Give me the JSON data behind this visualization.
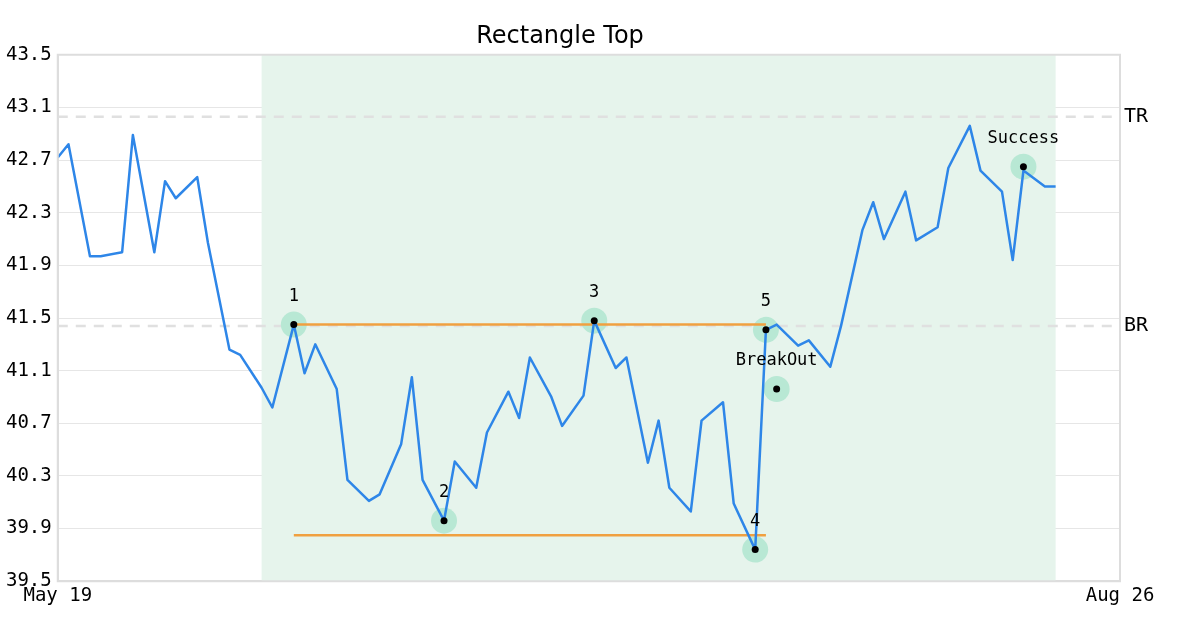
{
  "chart_data": {
    "type": "line",
    "title": "Rectangle Top",
    "x": [
      "--05-19",
      "--05-20",
      "--05-22",
      "--05-23",
      "--05-25",
      "--05-26",
      "--05-28",
      "--05-29",
      "--05-30",
      "--06-01",
      "--06-02",
      "--06-04",
      "--06-05",
      "--06-07",
      "--06-08",
      "--06-10",
      "--06-11",
      "--06-12",
      "--06-14",
      "--06-15",
      "--06-17",
      "--06-18",
      "--06-20",
      "--06-21",
      "--06-22",
      "--06-24",
      "--06-25",
      "--06-27",
      "--06-28",
      "--06-30",
      "--07-01",
      "--07-02",
      "--07-04",
      "--07-05",
      "--07-07",
      "--07-08",
      "--07-10",
      "--07-11",
      "--07-13",
      "--07-14",
      "--07-15",
      "--07-17",
      "--07-18",
      "--07-20",
      "--07-21",
      "--07-23",
      "--07-24",
      "--07-25",
      "--07-27",
      "--07-28",
      "--07-30",
      "--07-31",
      "--08-02",
      "--08-03",
      "--08-04",
      "--08-06",
      "--08-07",
      "--08-09",
      "--08-10",
      "--08-12",
      "--08-13",
      "--08-15",
      "--08-16",
      "--08-17",
      "--08-19",
      "--08-20"
    ],
    "xlim": [
      "--05-19",
      "--08-26"
    ],
    "xticks": [
      {
        "value": "--05-19",
        "label": "May 19"
      },
      {
        "value": "--08-26",
        "label": "Aug 26"
      }
    ],
    "ylim": [
      39.5,
      43.5
    ],
    "yticks": [
      39.5,
      39.9,
      40.3,
      40.7,
      41.1,
      41.5,
      41.9,
      42.3,
      42.7,
      43.1,
      43.5
    ],
    "grid": "y",
    "legend": false,
    "marker": "none",
    "series": [
      {
        "color": "#2e86e8",
        "values": [
          42.72,
          42.82,
          41.97,
          41.97,
          42.0,
          42.89,
          42.0,
          42.54,
          42.41,
          42.57,
          42.07,
          41.26,
          41.22,
          40.97,
          40.82,
          41.45,
          41.08,
          41.3,
          40.96,
          40.27,
          40.11,
          40.16,
          40.54,
          41.05,
          40.27,
          39.96,
          40.41,
          40.21,
          40.63,
          40.94,
          40.74,
          41.2,
          40.9,
          40.68,
          40.91,
          41.48,
          41.12,
          41.2,
          40.4,
          40.72,
          40.21,
          40.03,
          40.72,
          40.86,
          40.09,
          39.74,
          41.41,
          41.45,
          41.29,
          41.33,
          41.13,
          41.44,
          42.17,
          42.38,
          42.1,
          42.46,
          42.09,
          42.19,
          42.64,
          42.96,
          42.62,
          42.46,
          41.94,
          42.62,
          42.5,
          42.5
        ]
      },
      {
        "type": "line",
        "color": "#f0a040",
        "x": [
          "--06-10",
          "--07-24"
        ],
        "values": [
          41.45,
          41.45
        ]
      },
      {
        "type": "line",
        "color": "#f0a040",
        "x": [
          "--06-10",
          "--07-24"
        ],
        "values": [
          39.85,
          39.85
        ]
      },
      {
        "type": "scatter",
        "marker": "circle",
        "color": "#b8e8d4",
        "x": [
          "--06-10",
          "--06-24",
          "--07-08",
          "--07-23",
          "--07-24",
          "--07-25",
          "--08-17"
        ],
        "values": [
          41.45,
          39.96,
          41.48,
          39.74,
          41.41,
          40.96,
          42.65
        ]
      }
    ],
    "ref_lines": [
      {
        "axis": "y",
        "value": 43.03,
        "label": "TR",
        "color": "#e0e0e0",
        "line_style": "dashed"
      },
      {
        "axis": "y",
        "value": 41.44,
        "label": "BR",
        "color": "#e0e0e0",
        "line_style": "dashed"
      }
    ],
    "bands": [
      {
        "axis": "x",
        "from": "--06-07",
        "to": "--08-20",
        "color": "#e6f4ec"
      }
    ],
    "annotations": [
      {
        "text": "1",
        "x": "--06-10",
        "y": 41.45
      },
      {
        "text": "2",
        "x": "--06-24",
        "y": 39.96
      },
      {
        "text": "3",
        "x": "--07-08",
        "y": 41.48
      },
      {
        "text": "4",
        "x": "--07-23",
        "y": 39.74
      },
      {
        "text": "5",
        "x": "--07-24",
        "y": 41.41
      },
      {
        "text": "BreakOut",
        "x": "--07-25",
        "y": 40.96
      },
      {
        "text": "Success",
        "x": "--08-17",
        "y": 42.65
      }
    ]
  }
}
